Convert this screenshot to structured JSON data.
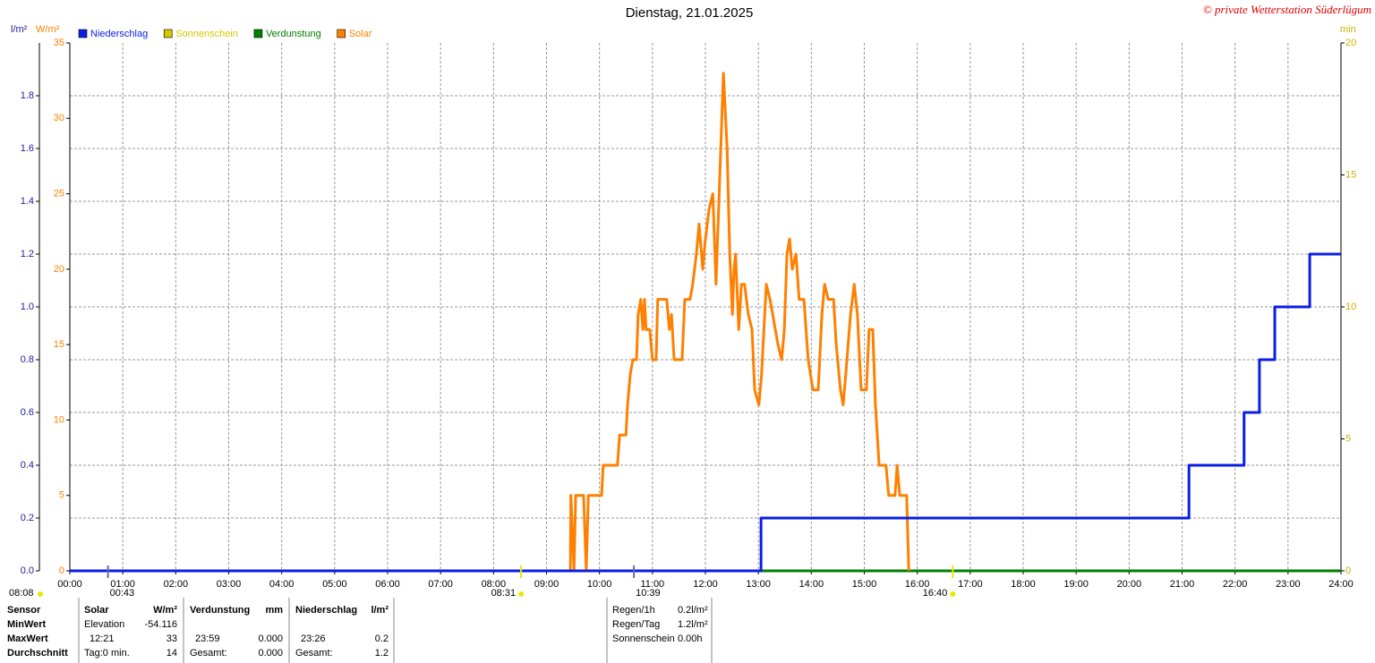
{
  "chart_data": {
    "type": "line",
    "title": "Dienstag, 21.01.2025",
    "credit": "© private Wetterstation Süderlügum",
    "ylabel": "l/m²",
    "y2label": "W/m²",
    "y3label": "min",
    "xlim": [
      0,
      24
    ],
    "xticks": [
      {
        "value": 0,
        "label": "00:00"
      },
      {
        "value": 1,
        "label": "01:00"
      },
      {
        "value": 2,
        "label": "02:00"
      },
      {
        "value": 3,
        "label": "03:00"
      },
      {
        "value": 4,
        "label": "04:00"
      },
      {
        "value": 5,
        "label": "05:00"
      },
      {
        "value": 6,
        "label": "06:00"
      },
      {
        "value": 7,
        "label": "07:00"
      },
      {
        "value": 8,
        "label": "08:00"
      },
      {
        "value": 9,
        "label": "09:00"
      },
      {
        "value": 10,
        "label": "10:00"
      },
      {
        "value": 11,
        "label": "11:00"
      },
      {
        "value": 12,
        "label": "12:00"
      },
      {
        "value": 13,
        "label": "13:00"
      },
      {
        "value": 14,
        "label": "14:00"
      },
      {
        "value": 15,
        "label": "15:00"
      },
      {
        "value": 16,
        "label": "16:00"
      },
      {
        "value": 17,
        "label": "17:00"
      },
      {
        "value": 18,
        "label": "18:00"
      },
      {
        "value": 19,
        "label": "19:00"
      },
      {
        "value": 20,
        "label": "20:00"
      },
      {
        "value": 21,
        "label": "21:00"
      },
      {
        "value": 22,
        "label": "22:00"
      },
      {
        "value": 23,
        "label": "23:00"
      },
      {
        "value": 24,
        "label": "24:00"
      }
    ],
    "ylim": [
      0,
      2
    ],
    "yticks": [
      {
        "value": 0,
        "label": "0.0"
      },
      0.2,
      0.4,
      0.6,
      0.8,
      {
        "value": 1,
        "label": "1.0"
      },
      1.2,
      1.4,
      1.6,
      1.8
    ],
    "ycolor": "#2020a0",
    "y2lim": [
      0,
      35
    ],
    "y2ticks": [
      0,
      5,
      10,
      15,
      20,
      25,
      30,
      35
    ],
    "y2color": "#ff8000",
    "y3lim": [
      0,
      20
    ],
    "y3ticks": [
      0,
      5,
      10,
      15,
      20
    ],
    "y3color": "#c8b400",
    "grid": true,
    "series": [
      {
        "name": "Niederschlag",
        "color": "#0a1ee6",
        "axis": "y",
        "step": true,
        "x": [
          0,
          13.05,
          21.13,
          22.17,
          22.46,
          22.75,
          23.41,
          24
        ],
        "values": [
          0,
          0.2,
          0.4,
          0.6,
          0.8,
          1.0,
          1.2,
          1.2
        ]
      },
      {
        "name": "Sonnenschein",
        "color": "#d4c800",
        "axis": "y3",
        "x": [],
        "values": []
      },
      {
        "name": "Verdunstung",
        "color": "#008000",
        "axis": "y3",
        "x": [
          0,
          24
        ],
        "values": [
          0,
          0
        ]
      },
      {
        "name": "Solar",
        "color": "#ff8000",
        "axis": "y2",
        "x": [
          9.45,
          9.46,
          9.52,
          9.55,
          9.7,
          9.75,
          9.79,
          10.04,
          10.07,
          10.34,
          10.38,
          10.5,
          10.53,
          10.58,
          10.63,
          10.7,
          10.73,
          10.78,
          10.82,
          10.85,
          10.88,
          10.95,
          11.0,
          11.07,
          11.1,
          11.27,
          11.32,
          11.36,
          11.41,
          11.56,
          11.61,
          11.71,
          11.76,
          11.83,
          11.88,
          11.95,
          12.0,
          12.07,
          12.14,
          12.2,
          12.27,
          12.34,
          12.41,
          12.46,
          12.51,
          12.54,
          12.57,
          12.63,
          12.68,
          12.74,
          12.81,
          12.88,
          12.93,
          13.01,
          13.06,
          13.15,
          13.22,
          13.32,
          13.37,
          13.44,
          13.49,
          13.54,
          13.59,
          13.64,
          13.71,
          13.77,
          13.86,
          13.94,
          14.03,
          14.13,
          14.2,
          14.25,
          14.32,
          14.42,
          14.47,
          14.55,
          14.6,
          14.65,
          14.74,
          14.81,
          14.87,
          14.94,
          15.04,
          15.09,
          15.16,
          15.21,
          15.28,
          15.41,
          15.46,
          15.58,
          15.62,
          15.67,
          15.8,
          15.84
        ],
        "values": [
          0,
          5,
          0,
          5,
          5,
          0,
          5,
          5,
          7,
          7,
          9,
          9,
          11,
          13,
          14,
          14,
          17,
          18,
          16,
          18,
          16,
          16,
          14,
          14,
          18,
          18,
          16,
          17,
          14,
          14,
          18,
          18,
          19,
          21,
          23,
          20,
          22,
          24,
          25,
          19,
          26,
          33,
          28,
          21,
          17,
          20,
          21,
          16,
          19,
          19,
          17,
          16,
          12,
          11,
          13,
          19,
          18,
          16,
          15,
          14,
          16,
          21,
          22,
          20,
          21,
          18,
          18,
          14,
          12,
          12,
          17,
          19,
          18,
          18,
          15,
          12,
          11,
          13,
          17,
          19,
          17,
          12,
          12,
          16,
          16,
          11,
          7,
          7,
          5,
          5,
          7,
          5,
          5,
          0
        ]
      }
    ],
    "annotations": [
      {
        "label": "08:08",
        "color": "#e8e800"
      },
      {
        "x": 0.72,
        "label": "00:43",
        "color": "#6a6aa8"
      },
      {
        "x": 8.52,
        "label": "08:31",
        "color": "#e8e800"
      },
      {
        "x": 10.65,
        "label": "10:39",
        "color": "#6a6aa8"
      },
      {
        "x": 16.67,
        "label": "16:40",
        "color": "#e8e800"
      }
    ]
  },
  "stats": {
    "labels": [
      "Sensor",
      "MinWert",
      "MaxWert",
      "Durchschnitt"
    ],
    "solar": {
      "header": [
        "Solar",
        "W/m²"
      ],
      "rows": [
        [
          "Elevation",
          "-54.116"
        ],
        [
          "12:21",
          "33"
        ],
        [
          "Tag:0 min.",
          "14"
        ]
      ]
    },
    "verdunstung": {
      "header": [
        "Verdunstung",
        "mm"
      ],
      "rows": [
        [
          "23:59",
          "0.000"
        ],
        [
          "Gesamt:",
          "0.000"
        ]
      ]
    },
    "niederschlag": {
      "header": [
        "Niederschlag",
        "l/m²"
      ],
      "rows": [
        [
          "23:26",
          "0.2"
        ],
        [
          "Gesamt:",
          "1.2"
        ]
      ]
    },
    "summary": [
      [
        "Regen/1h",
        "0.2l/m²"
      ],
      [
        "Regen/Tag",
        "1.2l/m²"
      ],
      [
        "Sonnenschein",
        "0.00h"
      ]
    ]
  }
}
